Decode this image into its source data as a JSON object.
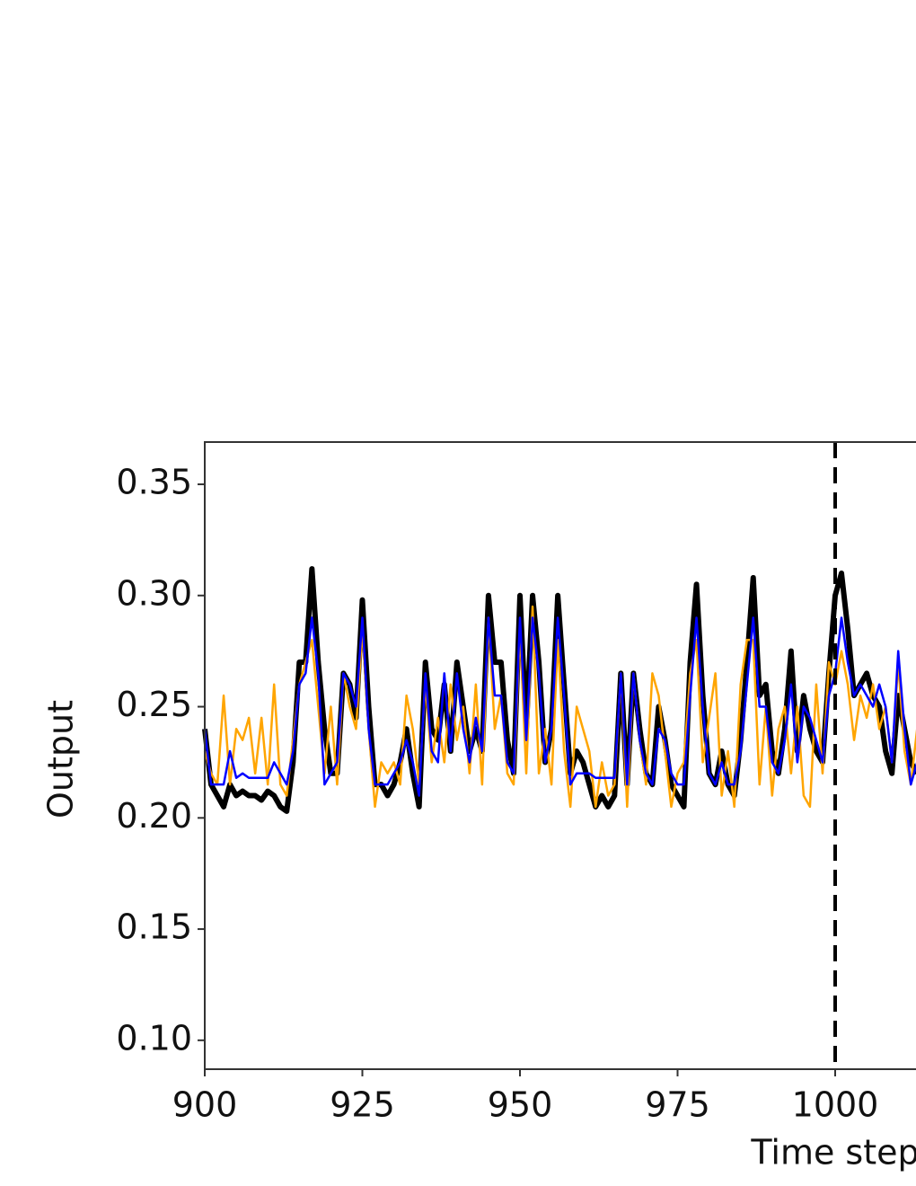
{
  "chart_data": {
    "type": "line",
    "x_label": "Time step",
    "y_label": "Output",
    "x": [
      900,
      901,
      902,
      903,
      904,
      905,
      906,
      907,
      908,
      909,
      910,
      911,
      912,
      913,
      914,
      915,
      916,
      917,
      918,
      919,
      920,
      921,
      922,
      923,
      924,
      925,
      926,
      927,
      928,
      929,
      930,
      931,
      932,
      933,
      934,
      935,
      936,
      937,
      938,
      939,
      940,
      941,
      942,
      943,
      944,
      945,
      946,
      947,
      948,
      949,
      950,
      951,
      952,
      953,
      954,
      955,
      956,
      957,
      958,
      959,
      960,
      961,
      962,
      963,
      964,
      965,
      966,
      967,
      968,
      969,
      970,
      971,
      972,
      973,
      974,
      975,
      976,
      977,
      978,
      979,
      980,
      981,
      982,
      983,
      984,
      985,
      986,
      987,
      988,
      989,
      990,
      991,
      992,
      993,
      994,
      995,
      996,
      997,
      998,
      999,
      1000,
      1001,
      1002,
      1003,
      1004,
      1005,
      1006,
      1007,
      1008,
      1009,
      1010,
      1011,
      1012,
      1013
    ],
    "series": [
      {
        "color": "#000000",
        "width": 6,
        "values": [
          0.24,
          0.215,
          0.21,
          0.205,
          0.215,
          0.21,
          0.212,
          0.21,
          0.21,
          0.208,
          0.212,
          0.21,
          0.205,
          0.203,
          0.225,
          0.27,
          0.27,
          0.312,
          0.27,
          0.24,
          0.22,
          0.22,
          0.265,
          0.26,
          0.245,
          0.298,
          0.25,
          0.215,
          0.215,
          0.21,
          0.215,
          0.225,
          0.24,
          0.22,
          0.205,
          0.27,
          0.24,
          0.235,
          0.26,
          0.23,
          0.27,
          0.25,
          0.23,
          0.24,
          0.23,
          0.3,
          0.27,
          0.27,
          0.235,
          0.22,
          0.3,
          0.24,
          0.3,
          0.27,
          0.225,
          0.24,
          0.3,
          0.26,
          0.22,
          0.23,
          0.225,
          0.215,
          0.205,
          0.21,
          0.205,
          0.21,
          0.265,
          0.215,
          0.265,
          0.24,
          0.22,
          0.215,
          0.25,
          0.235,
          0.215,
          0.21,
          0.205,
          0.27,
          0.305,
          0.255,
          0.22,
          0.215,
          0.23,
          0.215,
          0.21,
          0.235,
          0.27,
          0.308,
          0.255,
          0.26,
          0.23,
          0.22,
          0.24,
          0.275,
          0.23,
          0.255,
          0.24,
          0.23,
          0.225,
          0.265,
          0.3,
          0.31,
          0.285,
          0.255,
          0.26,
          0.265,
          0.255,
          0.25,
          0.23,
          0.22,
          0.255,
          0.24,
          0.225,
          0.22
        ]
      },
      {
        "color": "#ffa500",
        "width": 2.5,
        "values": [
          0.23,
          0.22,
          0.215,
          0.255,
          0.215,
          0.24,
          0.235,
          0.245,
          0.22,
          0.245,
          0.215,
          0.26,
          0.215,
          0.21,
          0.235,
          0.26,
          0.27,
          0.28,
          0.25,
          0.22,
          0.25,
          0.215,
          0.265,
          0.25,
          0.24,
          0.285,
          0.24,
          0.205,
          0.225,
          0.22,
          0.225,
          0.215,
          0.255,
          0.24,
          0.215,
          0.26,
          0.225,
          0.245,
          0.225,
          0.26,
          0.235,
          0.25,
          0.22,
          0.26,
          0.215,
          0.29,
          0.24,
          0.255,
          0.22,
          0.215,
          0.285,
          0.22,
          0.295,
          0.22,
          0.24,
          0.215,
          0.28,
          0.23,
          0.205,
          0.25,
          0.24,
          0.23,
          0.205,
          0.225,
          0.21,
          0.215,
          0.265,
          0.205,
          0.265,
          0.235,
          0.215,
          0.265,
          0.255,
          0.23,
          0.205,
          0.22,
          0.225,
          0.265,
          0.28,
          0.225,
          0.245,
          0.265,
          0.21,
          0.23,
          0.205,
          0.26,
          0.28,
          0.28,
          0.215,
          0.25,
          0.21,
          0.24,
          0.25,
          0.22,
          0.25,
          0.21,
          0.205,
          0.26,
          0.22,
          0.27,
          0.26,
          0.275,
          0.26,
          0.235,
          0.255,
          0.245,
          0.26,
          0.24,
          0.25,
          0.225,
          0.27,
          0.23,
          0.215,
          0.24
        ]
      },
      {
        "color": "#0000ff",
        "width": 2.5,
        "values": [
          0.24,
          0.215,
          0.215,
          0.215,
          0.23,
          0.218,
          0.22,
          0.218,
          0.218,
          0.218,
          0.218,
          0.225,
          0.22,
          0.215,
          0.23,
          0.26,
          0.265,
          0.29,
          0.265,
          0.215,
          0.22,
          0.225,
          0.265,
          0.26,
          0.25,
          0.29,
          0.24,
          0.215,
          0.215,
          0.215,
          0.22,
          0.225,
          0.235,
          0.225,
          0.21,
          0.265,
          0.23,
          0.225,
          0.265,
          0.23,
          0.265,
          0.24,
          0.225,
          0.245,
          0.23,
          0.29,
          0.255,
          0.255,
          0.225,
          0.22,
          0.29,
          0.235,
          0.29,
          0.265,
          0.225,
          0.24,
          0.29,
          0.255,
          0.215,
          0.22,
          0.22,
          0.22,
          0.218,
          0.218,
          0.218,
          0.218,
          0.265,
          0.215,
          0.265,
          0.235,
          0.22,
          0.215,
          0.24,
          0.235,
          0.22,
          0.215,
          0.215,
          0.255,
          0.29,
          0.25,
          0.22,
          0.215,
          0.225,
          0.215,
          0.215,
          0.23,
          0.26,
          0.29,
          0.25,
          0.25,
          0.225,
          0.22,
          0.235,
          0.26,
          0.225,
          0.25,
          0.245,
          0.235,
          0.225,
          0.255,
          0.265,
          0.29,
          0.27,
          0.255,
          0.26,
          0.255,
          0.25,
          0.26,
          0.25,
          0.225,
          0.275,
          0.24,
          0.215,
          0.225
        ]
      }
    ],
    "vline": 1000,
    "vline_color": "#000000",
    "xlim": [
      900,
      1100
    ],
    "ylim": [
      0.087,
      0.369
    ],
    "xticks": [
      900,
      925,
      950,
      975,
      1000
    ],
    "yticks": [
      {
        "value": 0.1,
        "label": "0.10"
      },
      {
        "value": 0.15,
        "label": "0.15"
      },
      {
        "value": 0.2,
        "label": "0.20"
      },
      {
        "value": 0.25,
        "label": "0.25"
      },
      {
        "value": 0.3,
        "label": "0.30"
      },
      {
        "value": 0.35,
        "label": "0.35"
      }
    ]
  }
}
